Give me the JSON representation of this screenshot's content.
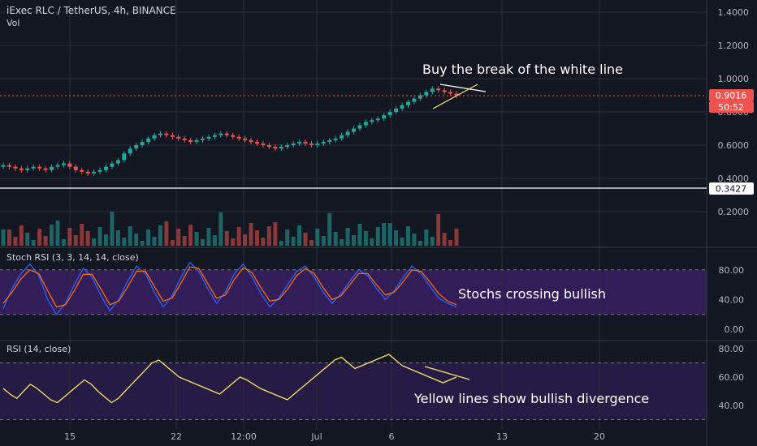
{
  "header": {
    "symbol": "iExec RLC / TetherUS, 4h, BINANCE",
    "volume_label": "Vol",
    "stoch_label": "Stoch RSI (3, 3, 14, 14, close)",
    "rsi_label": "RSI (14, close)"
  },
  "annotations": {
    "price_note": "Buy the break of the white line",
    "stoch_note": "Stochs crossing bullish",
    "rsi_note": "Yellow lines show bullish divergence"
  },
  "badges": {
    "last_price": "0.9016",
    "countdown": "50:52",
    "white_line_price": "0.3427"
  },
  "colors": {
    "up": "#26a69a",
    "down": "#ef5350",
    "k_line": "#2962ff",
    "d_line": "#ff6d00",
    "rsi_line": "#f5e663",
    "band": "#3a1f63",
    "background": "#131722"
  },
  "chart_data": {
    "type": "candlestick",
    "x_ticks": [
      "15",
      "22",
      "12:00",
      "Jul",
      "6",
      "13",
      "20"
    ],
    "price_axis": {
      "ticks": [
        "1.4000",
        "1.2000",
        "1.0000",
        "0.8000",
        "0.6000",
        "0.4000",
        "0.2000"
      ],
      "tick_values": [
        1.4,
        1.2,
        1.0,
        0.8,
        0.6,
        0.4,
        0.2
      ],
      "range": [
        0.11,
        1.44
      ]
    },
    "close_series": [
      0.48,
      0.47,
      0.46,
      0.45,
      0.46,
      0.47,
      0.46,
      0.45,
      0.47,
      0.48,
      0.49,
      0.47,
      0.45,
      0.44,
      0.43,
      0.44,
      0.45,
      0.47,
      0.49,
      0.51,
      0.55,
      0.58,
      0.6,
      0.62,
      0.64,
      0.66,
      0.67,
      0.66,
      0.65,
      0.64,
      0.63,
      0.62,
      0.63,
      0.64,
      0.65,
      0.66,
      0.67,
      0.66,
      0.65,
      0.64,
      0.63,
      0.62,
      0.61,
      0.6,
      0.59,
      0.58,
      0.59,
      0.6,
      0.61,
      0.62,
      0.61,
      0.6,
      0.61,
      0.62,
      0.63,
      0.64,
      0.66,
      0.68,
      0.7,
      0.72,
      0.74,
      0.75,
      0.76,
      0.78,
      0.8,
      0.82,
      0.84,
      0.86,
      0.88,
      0.9,
      0.92,
      0.94,
      0.93,
      0.92,
      0.91,
      0.9
    ],
    "volume_axis": {
      "ticks": [
        "0.2000"
      ],
      "tick_values": [
        0.2
      ]
    },
    "stoch_axis": {
      "ticks": [
        "80.00",
        "40.00",
        "0.00"
      ],
      "tick_values": [
        80,
        40,
        0
      ],
      "band": [
        20,
        80
      ]
    },
    "stoch_k": [
      28,
      55,
      75,
      88,
      72,
      40,
      20,
      35,
      60,
      82,
      70,
      45,
      25,
      40,
      65,
      85,
      75,
      50,
      30,
      45,
      70,
      90,
      78,
      55,
      35,
      50,
      75,
      88,
      70,
      48,
      30,
      42,
      60,
      78,
      85,
      70,
      50,
      35,
      48,
      65,
      80,
      72,
      55,
      40,
      52,
      70,
      85,
      75,
      58,
      42,
      35,
      30
    ],
    "stoch_d": [
      35,
      50,
      68,
      80,
      75,
      52,
      30,
      33,
      52,
      74,
      74,
      54,
      33,
      38,
      57,
      78,
      78,
      58,
      38,
      42,
      62,
      84,
      82,
      62,
      42,
      46,
      67,
      83,
      76,
      56,
      38,
      40,
      54,
      72,
      82,
      75,
      56,
      40,
      45,
      60,
      75,
      75,
      60,
      46,
      50,
      64,
      80,
      78,
      64,
      48,
      38,
      33
    ],
    "rsi_axis": {
      "ticks": [
        "80.00",
        "60.00",
        "40.00"
      ],
      "tick_values": [
        80,
        60,
        40
      ],
      "band": [
        30,
        70
      ]
    },
    "rsi_values": [
      52,
      48,
      45,
      50,
      55,
      52,
      48,
      44,
      42,
      46,
      50,
      54,
      58,
      55,
      50,
      46,
      42,
      45,
      50,
      55,
      60,
      65,
      70,
      72,
      68,
      64,
      60,
      58,
      56,
      54,
      52,
      50,
      48,
      52,
      56,
      60,
      58,
      55,
      52,
      50,
      48,
      46,
      44,
      48,
      52,
      56,
      60,
      64,
      68,
      72,
      74,
      70,
      66,
      68,
      70,
      72,
      74,
      76,
      72,
      68,
      66,
      64,
      62,
      60,
      58,
      56,
      58,
      60
    ],
    "divergence": {
      "rsi_from": 68,
      "rsi_to": 60
    }
  }
}
